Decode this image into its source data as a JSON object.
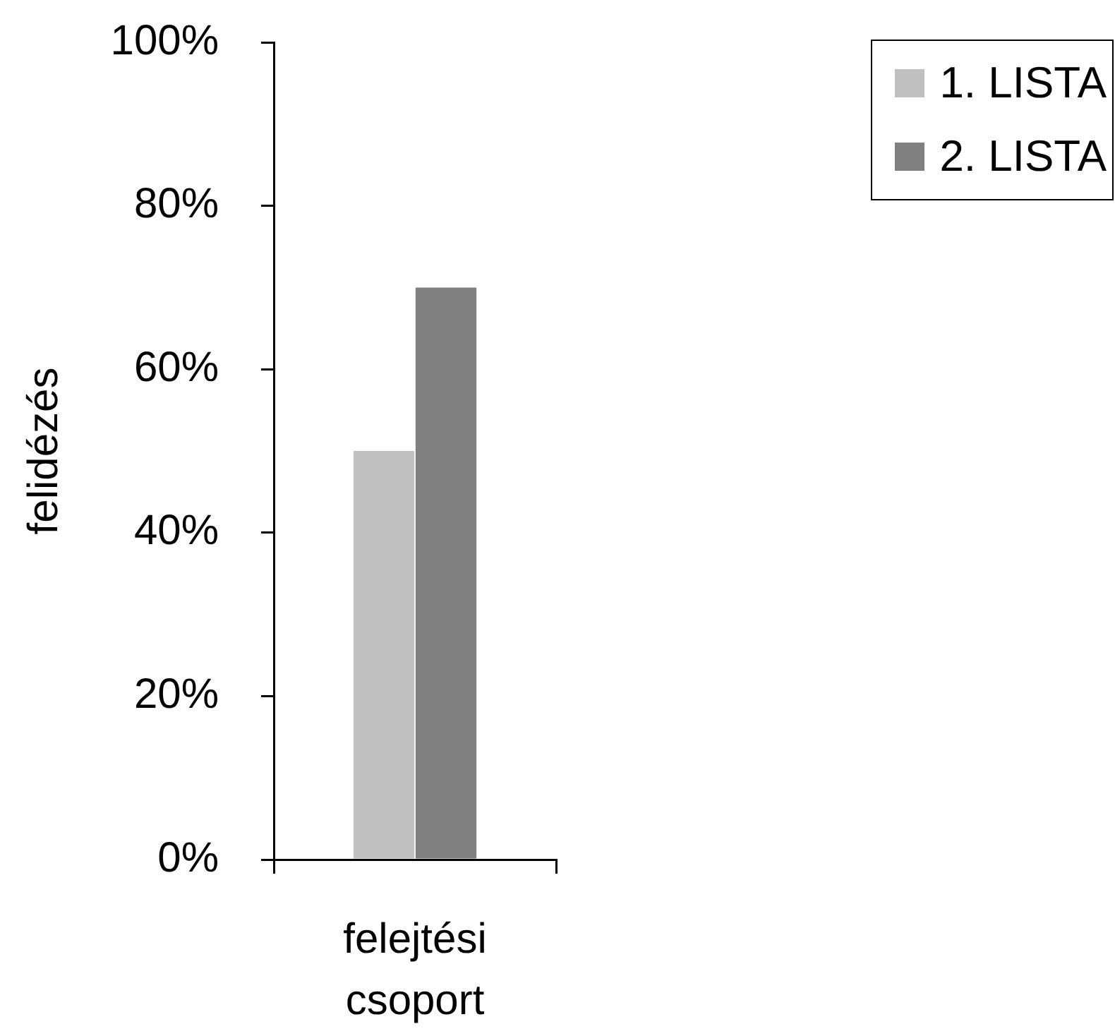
{
  "chart_data": {
    "type": "bar",
    "ylabel": "felidézés",
    "categories": [
      "felejtési csoport"
    ],
    "series": [
      {
        "name": "1. LISTA",
        "color": "#c0c0c0",
        "values": [
          50
        ]
      },
      {
        "name": "2. LISTA",
        "color": "#808080",
        "values": [
          70
        ]
      }
    ],
    "ylim": [
      0,
      100
    ],
    "yticks": [
      {
        "value": 0,
        "label": "0%"
      },
      {
        "value": 20,
        "label": "20%"
      },
      {
        "value": 40,
        "label": "40%"
      },
      {
        "value": 60,
        "label": "60%"
      },
      {
        "value": 80,
        "label": "80%"
      },
      {
        "value": 100,
        "label": "100%"
      }
    ],
    "legend": "top right"
  }
}
